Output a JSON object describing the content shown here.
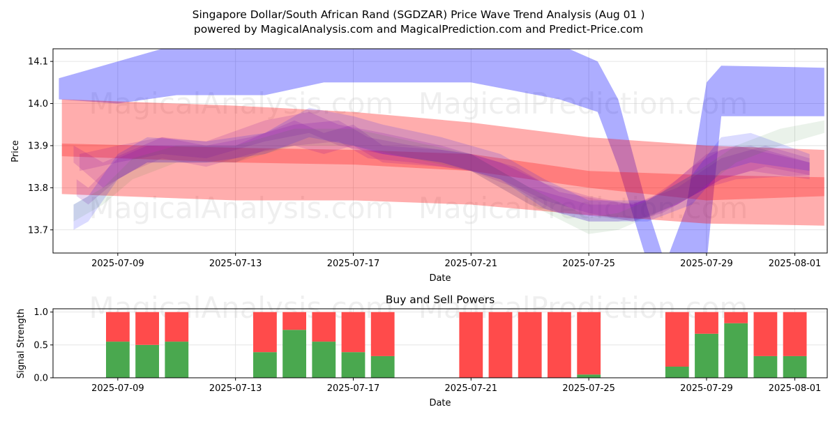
{
  "title_line1": "Singapore Dollar/South African Rand (SGDZAR) Price Wave Trend Analysis (Aug 01 )",
  "title_line2": "powered by MagicalAnalysis.com and MagicalPrediction.com and Predict-Price.com",
  "watermarks": [
    "MagicalAnalysis.com",
    "MagicalPrediction.com"
  ],
  "colors": {
    "blue_band": "#0000ff",
    "red_band": "#ff0000",
    "purple_band": "#8000a0",
    "green_band": "#2e7d32",
    "buy_bar": "#4aa84f",
    "sell_bar": "#ff4b4b",
    "grid": "#dddddd"
  },
  "chart_data": [
    {
      "type": "line",
      "title": "",
      "xlabel": "Date",
      "ylabel": "Price",
      "grid": true,
      "xlim_days": [
        -2.2,
        24.1
      ],
      "ylim": [
        13.645,
        14.13
      ],
      "x_origin_date": "2025-07-09",
      "x_ticks": [
        {
          "day": 0,
          "label": "2025-07-09"
        },
        {
          "day": 4,
          "label": "2025-07-13"
        },
        {
          "day": 8,
          "label": "2025-07-17"
        },
        {
          "day": 12,
          "label": "2025-07-21"
        },
        {
          "day": 16,
          "label": "2025-07-25"
        },
        {
          "day": 20,
          "label": "2025-07-29"
        },
        {
          "day": 23,
          "label": "2025-08-01"
        }
      ],
      "y_ticks": [
        13.7,
        13.8,
        13.9,
        14.0,
        14.1
      ],
      "series": [
        {
          "name": "blue-wave-long",
          "color": "blue",
          "opacity": 0.32,
          "bands": [
            {
              "x": [
                -2.0,
                0.0,
                2.0,
                5.0,
                7.0,
                10.0,
                12.0,
                15.0,
                16.3,
                17.0,
                18.0,
                18.6,
                19.3,
                20.0,
                20.5,
                24.0
              ],
              "lower": [
                14.01,
                14.0,
                14.02,
                14.02,
                14.05,
                14.05,
                14.05,
                14.01,
                13.98,
                13.85,
                13.62,
                13.5,
                13.55,
                13.62,
                13.97,
                13.97
              ],
              "upper": [
                14.06,
                14.1,
                14.14,
                14.16,
                14.16,
                14.16,
                14.16,
                14.14,
                14.1,
                14.01,
                13.75,
                13.62,
                13.75,
                14.05,
                14.09,
                14.085
              ]
            }
          ]
        },
        {
          "name": "red-wave-envelope",
          "color": "red",
          "opacity": 0.32,
          "bands": [
            {
              "x": [
                -1.9,
                4.0,
                8.0,
                12.0,
                16.0,
                20.0,
                24.0
              ],
              "lower": [
                13.785,
                13.77,
                13.77,
                13.76,
                13.735,
                13.715,
                13.71
              ],
              "upper": [
                14.01,
                13.995,
                13.98,
                13.955,
                13.92,
                13.9,
                13.89
              ]
            }
          ]
        },
        {
          "name": "red-wave-mid",
          "color": "red",
          "opacity": 0.28,
          "bands": [
            {
              "x": [
                -1.9,
                4.0,
                8.0,
                12.0,
                16.0,
                20.0,
                24.0
              ],
              "lower": [
                13.875,
                13.86,
                13.855,
                13.84,
                13.8,
                13.77,
                13.78
              ],
              "upper": [
                13.905,
                13.895,
                13.89,
                13.88,
                13.84,
                13.83,
                13.825
              ]
            }
          ]
        },
        {
          "name": "purple-wave-cluster",
          "color": "purple",
          "opacity": 0.16,
          "bands": [
            {
              "x": [
                -1.4,
                -1.0,
                0.0,
                1.0,
                2.0,
                4.0,
                5.0,
                6.0,
                7.0,
                8.0,
                9.0,
                11.0,
                12.0,
                13.0,
                14.0,
                15.0,
                16.0,
                17.0,
                18.0,
                19.0,
                20.0,
                21.0,
                23.5
              ],
              "lower": [
                13.78,
                13.76,
                13.82,
                13.86,
                13.86,
                13.86,
                13.89,
                13.9,
                13.88,
                13.9,
                13.86,
                13.85,
                13.84,
                13.8,
                13.76,
                13.74,
                13.72,
                13.72,
                13.73,
                13.76,
                13.8,
                13.82,
                13.83
              ],
              "upper": [
                13.82,
                13.8,
                13.87,
                13.9,
                13.9,
                13.9,
                13.93,
                13.96,
                13.93,
                13.95,
                13.9,
                13.89,
                13.88,
                13.84,
                13.8,
                13.78,
                13.76,
                13.76,
                13.77,
                13.82,
                13.88,
                13.9,
                13.86
              ]
            },
            {
              "x": [
                -1.5,
                -0.5,
                0.5,
                1.5,
                3.0,
                4.5,
                6.0,
                7.5,
                8.5,
                10.0,
                12.0,
                13.5,
                15.0,
                16.5,
                17.5,
                18.5,
                19.5,
                20.5,
                21.5,
                23.5
              ],
              "lower": [
                13.86,
                13.8,
                13.84,
                13.87,
                13.85,
                13.88,
                13.9,
                13.91,
                13.87,
                13.86,
                13.84,
                13.8,
                13.74,
                13.73,
                13.72,
                13.74,
                13.78,
                13.82,
                13.84,
                13.82
              ],
              "upper": [
                13.9,
                13.86,
                13.89,
                13.92,
                13.9,
                13.92,
                13.95,
                13.96,
                13.92,
                13.9,
                13.88,
                13.85,
                13.79,
                13.77,
                13.76,
                13.79,
                13.85,
                13.89,
                13.9,
                13.86
              ]
            },
            {
              "x": [
                -1.3,
                0.0,
                1.5,
                3.0,
                5.0,
                6.5,
                7.5,
                9.0,
                11.0,
                13.0,
                14.5,
                16.0,
                17.5,
                19.0,
                20.5,
                22.0,
                23.5
              ],
              "lower": [
                13.84,
                13.86,
                13.88,
                13.87,
                13.91,
                13.93,
                13.9,
                13.88,
                13.86,
                13.82,
                13.77,
                13.74,
                13.72,
                13.76,
                13.82,
                13.85,
                13.83
              ],
              "upper": [
                13.88,
                13.9,
                13.92,
                13.91,
                13.96,
                13.98,
                13.95,
                13.93,
                13.9,
                13.86,
                13.81,
                13.78,
                13.76,
                13.8,
                13.87,
                13.9,
                13.87
              ]
            }
          ]
        },
        {
          "name": "blue-wave-short",
          "color": "blue",
          "opacity": 0.14,
          "bands": [
            {
              "x": [
                -1.5,
                -1.0,
                0.0,
                1.0,
                3.0,
                5.0,
                6.5,
                8.0,
                9.0,
                11.0,
                13.0,
                14.5,
                16.0,
                18.0,
                19.5,
                20.5,
                21.5,
                23.5
              ],
              "lower": [
                13.7,
                13.72,
                13.82,
                13.86,
                13.86,
                13.88,
                13.92,
                13.9,
                13.88,
                13.86,
                13.82,
                13.75,
                13.72,
                13.72,
                13.76,
                13.84,
                13.86,
                13.84
              ],
              "upper": [
                13.76,
                13.78,
                13.88,
                13.92,
                13.91,
                13.93,
                13.99,
                13.97,
                13.95,
                13.92,
                13.88,
                13.82,
                13.77,
                13.77,
                13.83,
                13.92,
                13.93,
                13.88
              ]
            }
          ]
        },
        {
          "name": "green-wave-short",
          "color": "green",
          "opacity": 0.1,
          "bands": [
            {
              "x": [
                -1.5,
                -0.5,
                0.5,
                2.0,
                4.0,
                6.0,
                8.0,
                10.0,
                12.0,
                14.0,
                16.0,
                17.0,
                18.0,
                19.5,
                21.0,
                22.5,
                24.0
              ],
              "lower": [
                13.72,
                13.76,
                13.82,
                13.86,
                13.86,
                13.9,
                13.9,
                13.87,
                13.84,
                13.76,
                13.69,
                13.7,
                13.73,
                13.78,
                13.86,
                13.9,
                13.93
              ],
              "upper": [
                13.76,
                13.8,
                13.87,
                13.9,
                13.9,
                13.94,
                13.94,
                13.91,
                13.88,
                13.8,
                13.73,
                13.74,
                13.77,
                13.83,
                13.9,
                13.94,
                13.96
              ]
            }
          ]
        }
      ]
    },
    {
      "type": "bar",
      "title": "Buy and Sell Powers",
      "xlabel": "Date",
      "ylabel": "Signal Strength",
      "grid": true,
      "ylim": [
        0,
        1.05
      ],
      "y_ticks": [
        0.0,
        0.5,
        1.0
      ],
      "x_ticks": [
        {
          "day": 0,
          "label": "2025-07-09"
        },
        {
          "day": 4,
          "label": "2025-07-13"
        },
        {
          "day": 8,
          "label": "2025-07-17"
        },
        {
          "day": 12,
          "label": "2025-07-21"
        },
        {
          "day": 16,
          "label": "2025-07-25"
        },
        {
          "day": 20,
          "label": "2025-07-29"
        },
        {
          "day": 23,
          "label": "2025-08-01"
        }
      ],
      "categories": [
        "2025-07-09",
        "2025-07-10",
        "2025-07-11",
        "2025-07-14",
        "2025-07-15",
        "2025-07-16",
        "2025-07-17",
        "2025-07-18",
        "2025-07-21",
        "2025-07-22",
        "2025-07-23",
        "2025-07-24",
        "2025-07-25",
        "2025-07-28",
        "2025-07-29",
        "2025-07-30",
        "2025-07-31",
        "2025-08-01"
      ],
      "days": [
        0,
        1,
        2,
        5,
        6,
        7,
        8,
        9,
        12,
        13,
        14,
        15,
        16,
        19,
        20,
        21,
        22,
        23
      ],
      "series": [
        {
          "name": "Buy",
          "values": [
            0.55,
            0.5,
            0.55,
            0.39,
            0.73,
            0.55,
            0.39,
            0.33,
            0.0,
            0.0,
            0.0,
            0.0,
            0.05,
            0.17,
            0.67,
            0.83,
            0.33,
            0.33
          ]
        },
        {
          "name": "Sell",
          "values": [
            0.45,
            0.5,
            0.45,
            0.61,
            0.27,
            0.45,
            0.61,
            0.67,
            1.0,
            1.0,
            1.0,
            1.0,
            0.95,
            0.83,
            0.33,
            0.17,
            0.67,
            0.67
          ]
        }
      ]
    }
  ]
}
